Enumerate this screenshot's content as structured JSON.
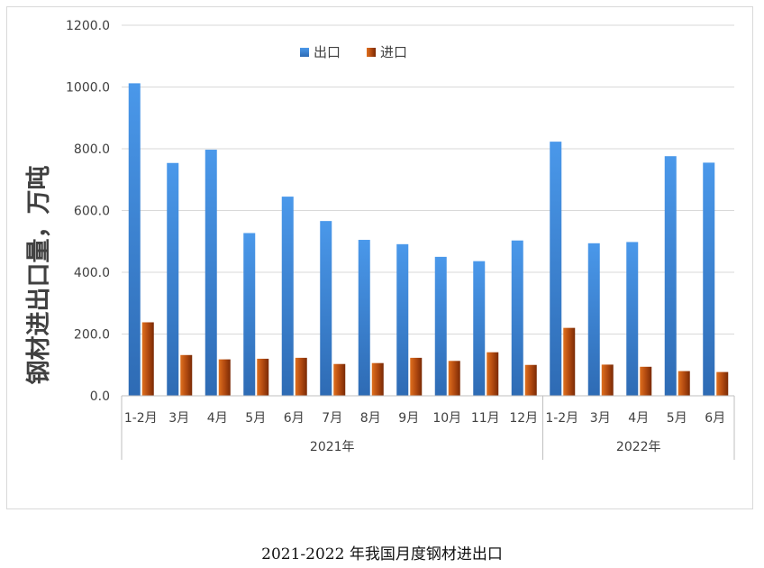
{
  "caption": "2021-2022 年我国月度钢材进出口",
  "chart_data": {
    "type": "bar",
    "title": "",
    "xlabel": "",
    "ylabel": "钢材进出口量，万吨",
    "ylim": [
      0,
      1200
    ],
    "yticks": [
      "0.0",
      "200.0",
      "400.0",
      "600.0",
      "800.0",
      "1000.0",
      "1200.0"
    ],
    "grid": true,
    "legend_position": "top",
    "categories": [
      "1-2月",
      "3月",
      "4月",
      "5月",
      "6月",
      "7月",
      "8月",
      "9月",
      "10月",
      "11月",
      "12月",
      "1-2月",
      "3月",
      "4月",
      "5月",
      "6月"
    ],
    "groups": [
      {
        "label": "2021年",
        "count": 11
      },
      {
        "label": "2022年",
        "count": 5
      }
    ],
    "series": [
      {
        "name": "出口",
        "color": "#3e86d6",
        "values": [
          1012,
          754,
          797,
          527,
          645,
          566,
          505,
          491,
          450,
          436,
          503,
          823,
          494,
          498,
          776,
          755
        ]
      },
      {
        "name": "进口",
        "color": "#b0440c",
        "values": [
          238,
          132,
          118,
          120,
          123,
          103,
          106,
          123,
          113,
          141,
          100,
          220,
          101,
          94,
          80,
          77
        ]
      }
    ]
  }
}
